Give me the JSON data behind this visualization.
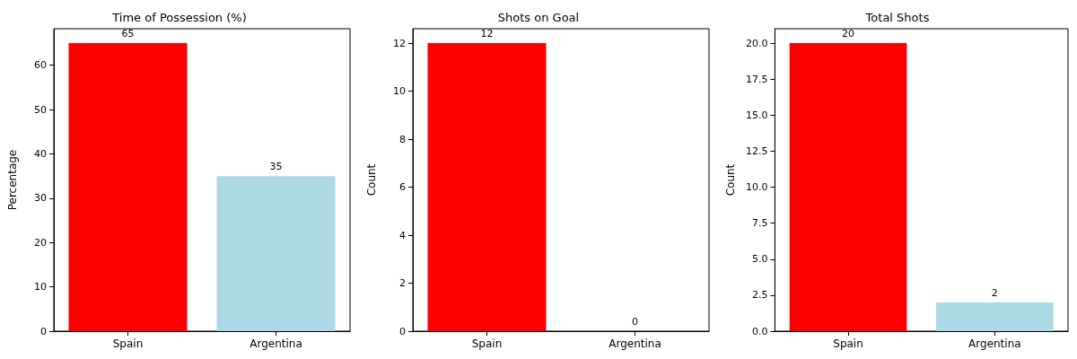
{
  "chart_data": [
    {
      "type": "bar",
      "title": "Time of Possession (%)",
      "ylabel": "Percentage",
      "categories": [
        "Spain",
        "Argentina"
      ],
      "values": [
        65,
        35
      ],
      "colors": [
        "#ff0000",
        "#add8e6"
      ],
      "ylim": [
        0,
        68.25
      ],
      "yticks": [
        0,
        10,
        20,
        30,
        40,
        50,
        60
      ],
      "data_labels": true,
      "grid": false
    },
    {
      "type": "bar",
      "title": "Shots on Goal",
      "ylabel": "Count",
      "categories": [
        "Spain",
        "Argentina"
      ],
      "values": [
        12,
        0
      ],
      "colors": [
        "#ff0000",
        "#add8e6"
      ],
      "ylim": [
        0,
        12.6
      ],
      "yticks": [
        0,
        2,
        4,
        6,
        8,
        10,
        12
      ],
      "data_labels": true,
      "grid": false
    },
    {
      "type": "bar",
      "title": "Total Shots",
      "ylabel": "Count",
      "categories": [
        "Spain",
        "Argentina"
      ],
      "values": [
        20,
        2
      ],
      "colors": [
        "#ff0000",
        "#add8e6"
      ],
      "ylim": [
        0,
        21
      ],
      "yticks": [
        {
          "value": 0,
          "label": "0.0"
        },
        {
          "value": 2.5,
          "label": "2.5"
        },
        {
          "value": 5,
          "label": "5.0"
        },
        {
          "value": 7.5,
          "label": "7.5"
        },
        {
          "value": 10,
          "label": "10.0"
        },
        {
          "value": 12.5,
          "label": "12.5"
        },
        {
          "value": 15,
          "label": "15.0"
        },
        {
          "value": 17.5,
          "label": "17.5"
        },
        {
          "value": 20,
          "label": "20.0"
        }
      ],
      "data_labels": true,
      "grid": false
    }
  ]
}
